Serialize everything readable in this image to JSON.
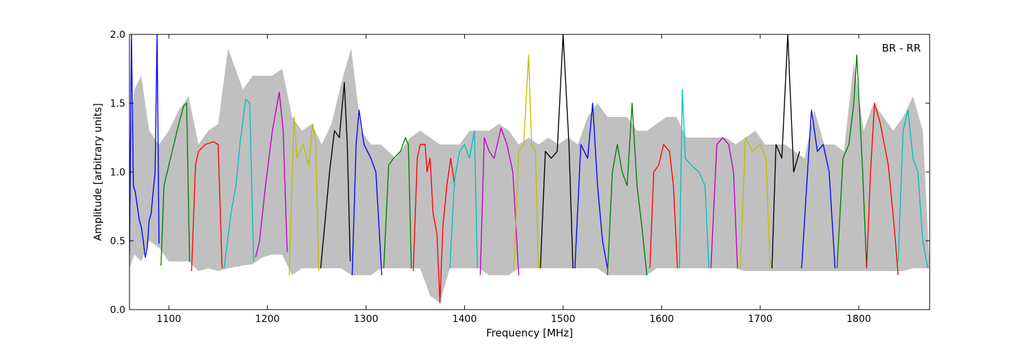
{
  "chart_data": {
    "type": "line",
    "title": "",
    "annotation": "BR - RR",
    "xlabel": "Frequency [MHz]",
    "ylabel": "Amplitude [arbitrary units]",
    "xlim": [
      1060,
      1872
    ],
    "ylim": [
      0.0,
      2.0
    ],
    "xticks": [
      1100,
      1200,
      1300,
      1400,
      1500,
      1600,
      1700,
      1800
    ],
    "yticks": [
      0.0,
      0.5,
      1.0,
      1.5,
      2.0
    ],
    "xtick_labels": [
      "1100",
      "1200",
      "1300",
      "1400",
      "1500",
      "1600",
      "1700",
      "1800"
    ],
    "ytick_labels": [
      "0.0",
      "0.5",
      "1.0",
      "1.5",
      "2.0"
    ],
    "grid": false,
    "envelope": {
      "name": "",
      "color": "#c0c0c0",
      "x": [
        1060,
        1065,
        1072,
        1080,
        1090,
        1100,
        1110,
        1120,
        1130,
        1140,
        1150,
        1160,
        1175,
        1185,
        1195,
        1205,
        1215,
        1225,
        1235,
        1245,
        1255,
        1265,
        1275,
        1285,
        1295,
        1305,
        1315,
        1330,
        1345,
        1355,
        1365,
        1375,
        1385,
        1395,
        1405,
        1415,
        1425,
        1435,
        1445,
        1455,
        1465,
        1475,
        1485,
        1495,
        1505,
        1515,
        1525,
        1535,
        1545,
        1555,
        1565,
        1575,
        1585,
        1595,
        1605,
        1615,
        1625,
        1635,
        1645,
        1655,
        1665,
        1675,
        1685,
        1695,
        1705,
        1715,
        1725,
        1735,
        1745,
        1755,
        1765,
        1775,
        1785,
        1795,
        1805,
        1815,
        1825,
        1835,
        1845,
        1855,
        1865,
        1872
      ],
      "y": [
        1.2,
        1.6,
        1.7,
        1.3,
        1.2,
        1.3,
        1.45,
        1.55,
        1.2,
        1.3,
        1.35,
        1.9,
        1.6,
        1.7,
        1.7,
        1.7,
        1.75,
        1.4,
        1.3,
        1.35,
        1.2,
        1.35,
        1.65,
        1.9,
        1.3,
        1.2,
        1.2,
        1.1,
        1.25,
        1.3,
        1.25,
        1.2,
        1.2,
        1.2,
        1.3,
        1.3,
        1.3,
        1.35,
        1.3,
        1.2,
        1.25,
        1.2,
        1.25,
        1.2,
        1.25,
        1.2,
        1.4,
        1.5,
        1.4,
        1.4,
        1.4,
        1.3,
        1.3,
        1.35,
        1.4,
        1.4,
        1.25,
        1.25,
        1.25,
        1.25,
        1.25,
        1.2,
        1.25,
        1.3,
        1.2,
        1.2,
        1.2,
        1.15,
        1.1,
        1.45,
        1.2,
        1.2,
        1.15,
        1.8,
        1.3,
        1.5,
        1.4,
        1.3,
        1.4,
        1.55,
        1.3,
        0.3
      ],
      "lower": [
        0.3,
        0.4,
        0.35,
        0.5,
        0.45,
        0.35,
        0.35,
        0.35,
        0.28,
        0.3,
        0.28,
        0.3,
        0.32,
        0.33,
        0.38,
        0.4,
        0.4,
        0.25,
        0.3,
        0.3,
        0.3,
        0.3,
        0.3,
        0.25,
        0.25,
        0.25,
        0.3,
        0.3,
        0.3,
        0.3,
        0.1,
        0.05,
        0.3,
        0.3,
        0.3,
        0.3,
        0.25,
        0.25,
        0.25,
        0.3,
        0.3,
        0.3,
        0.3,
        0.3,
        0.3,
        0.3,
        0.3,
        0.3,
        0.25,
        0.25,
        0.25,
        0.25,
        0.25,
        0.3,
        0.3,
        0.3,
        0.3,
        0.3,
        0.3,
        0.3,
        0.3,
        0.3,
        0.28,
        0.28,
        0.28,
        0.28,
        0.28,
        0.28,
        0.28,
        0.28,
        0.28,
        0.28,
        0.28,
        0.28,
        0.28,
        0.28,
        0.28,
        0.28,
        0.28,
        0.3,
        0.3,
        0.3
      ]
    },
    "series": [
      {
        "color": "#0000ff",
        "x": [
          1060,
          1062,
          1064,
          1066,
          1068,
          1070,
          1072,
          1074,
          1076,
          1078,
          1080,
          1082,
          1084,
          1086,
          1088,
          1090
        ],
        "y": [
          0.4,
          2.0,
          0.9,
          0.85,
          0.75,
          0.65,
          0.6,
          0.5,
          0.38,
          0.45,
          0.65,
          0.7,
          0.85,
          1.0,
          2.0,
          0.48
        ]
      },
      {
        "color": "#008000",
        "x": [
          1092,
          1095,
          1100,
          1105,
          1110,
          1115,
          1118,
          1121
        ],
        "y": [
          0.32,
          0.9,
          1.05,
          1.2,
          1.35,
          1.48,
          1.5,
          0.35
        ]
      },
      {
        "color": "#ff0000",
        "x": [
          1123,
          1127,
          1130,
          1137,
          1145,
          1150,
          1154
        ],
        "y": [
          0.28,
          1.05,
          1.15,
          1.2,
          1.22,
          1.2,
          0.3
        ]
      },
      {
        "color": "#00bfbf",
        "x": [
          1156,
          1163,
          1168,
          1172,
          1178,
          1182,
          1186
        ],
        "y": [
          0.3,
          0.7,
          0.9,
          1.2,
          1.53,
          1.5,
          0.35
        ]
      },
      {
        "color": "#bf00bf",
        "x": [
          1188,
          1192,
          1198,
          1205,
          1212,
          1216,
          1220
        ],
        "y": [
          0.38,
          0.5,
          0.9,
          1.3,
          1.58,
          1.3,
          0.42
        ]
      },
      {
        "color": "#bfbf00",
        "x": [
          1222,
          1227,
          1230,
          1236,
          1242,
          1246,
          1249,
          1252
        ],
        "y": [
          0.25,
          1.4,
          1.1,
          1.2,
          1.05,
          1.35,
          1.2,
          0.28
        ]
      },
      {
        "color": "#000000",
        "x": [
          1254,
          1258,
          1263,
          1268,
          1273,
          1278,
          1281,
          1284
        ],
        "y": [
          0.3,
          0.6,
          1.0,
          1.3,
          1.25,
          1.65,
          1.2,
          0.35
        ]
      },
      {
        "color": "#0000ff",
        "x": [
          1286,
          1290,
          1293,
          1298,
          1305,
          1310,
          1314,
          1316
        ],
        "y": [
          0.25,
          1.2,
          1.45,
          1.2,
          1.1,
          1.0,
          0.5,
          0.25
        ]
      },
      {
        "color": "#008000",
        "x": [
          1318,
          1323,
          1328,
          1335,
          1340,
          1343,
          1346
        ],
        "y": [
          0.3,
          1.05,
          1.1,
          1.15,
          1.25,
          1.2,
          0.3
        ]
      },
      {
        "color": "#ff0000",
        "x": [
          1348,
          1352,
          1355,
          1360,
          1362,
          1365,
          1368,
          1372,
          1375,
          1378,
          1382,
          1386,
          1390
        ],
        "y": [
          0.28,
          1.1,
          1.2,
          1.2,
          1.0,
          1.1,
          0.7,
          0.55,
          0.05,
          0.6,
          0.9,
          1.1,
          0.9
        ]
      },
      {
        "color": "#00bfbf",
        "x": [
          1385,
          1390,
          1395,
          1400,
          1405,
          1410,
          1413
        ],
        "y": [
          0.3,
          0.95,
          1.15,
          1.2,
          1.1,
          1.3,
          0.3
        ]
      },
      {
        "color": "#bf00bf",
        "x": [
          1416,
          1420,
          1425,
          1430,
          1437,
          1443,
          1449,
          1455
        ],
        "y": [
          0.25,
          1.25,
          1.15,
          1.1,
          1.32,
          1.2,
          1.0,
          0.25
        ]
      },
      {
        "color": "#bfbf00",
        "x": [
          1450,
          1455,
          1460,
          1465,
          1468,
          1472,
          1475
        ],
        "y": [
          0.3,
          1.15,
          1.2,
          1.85,
          1.2,
          1.15,
          0.3
        ]
      },
      {
        "color": "#000000",
        "x": [
          1477,
          1482,
          1488,
          1494,
          1500,
          1506,
          1510
        ],
        "y": [
          0.3,
          1.15,
          1.1,
          1.15,
          2.0,
          1.2,
          0.3
        ]
      },
      {
        "color": "#0000ff",
        "x": [
          1512,
          1518,
          1525,
          1530,
          1535,
          1540,
          1545
        ],
        "y": [
          0.3,
          1.2,
          1.1,
          1.5,
          0.9,
          0.5,
          0.3
        ]
      },
      {
        "color": "#008000",
        "x": [
          1545,
          1550,
          1555,
          1560,
          1565,
          1570,
          1575,
          1580,
          1585
        ],
        "y": [
          0.25,
          1.0,
          1.2,
          1.0,
          0.9,
          1.5,
          0.9,
          0.6,
          0.25
        ]
      },
      {
        "color": "#ff0000",
        "x": [
          1588,
          1592,
          1597,
          1602,
          1608,
          1612,
          1616
        ],
        "y": [
          0.3,
          1.0,
          1.05,
          1.2,
          1.15,
          0.9,
          0.3
        ]
      },
      {
        "color": "#00bfbf",
        "x": [
          1618,
          1621,
          1624,
          1630,
          1638,
          1644,
          1648
        ],
        "y": [
          0.3,
          1.6,
          1.1,
          1.05,
          1.0,
          0.9,
          0.3
        ]
      },
      {
        "color": "#bf00bf",
        "x": [
          1650,
          1656,
          1662,
          1668,
          1673,
          1677
        ],
        "y": [
          0.3,
          1.2,
          1.25,
          1.2,
          1.0,
          0.3
        ]
      },
      {
        "color": "#bfbf00",
        "x": [
          1680,
          1685,
          1692,
          1700,
          1706,
          1710
        ],
        "y": [
          0.3,
          1.25,
          1.15,
          1.2,
          1.1,
          0.3
        ]
      },
      {
        "color": "#000000",
        "x": [
          1712,
          1716,
          1722,
          1728,
          1734,
          1740
        ],
        "y": [
          0.3,
          1.2,
          1.1,
          2.0,
          1.0,
          1.15
        ]
      },
      {
        "color": "#0000ff",
        "x": [
          1742,
          1748,
          1752,
          1758,
          1764,
          1770,
          1776
        ],
        "y": [
          0.3,
          1.0,
          1.45,
          1.15,
          1.2,
          1.0,
          0.3
        ]
      },
      {
        "color": "#008000",
        "x": [
          1778,
          1784,
          1790,
          1795,
          1798,
          1804,
          1808
        ],
        "y": [
          0.3,
          1.1,
          1.2,
          1.5,
          1.85,
          1.0,
          0.3
        ]
      },
      {
        "color": "#ff0000",
        "x": [
          1808,
          1812,
          1816,
          1822,
          1830,
          1836,
          1840
        ],
        "y": [
          0.3,
          1.0,
          1.5,
          1.35,
          1.05,
          0.6,
          0.25
        ]
      },
      {
        "color": "#00bfbf",
        "x": [
          1840,
          1845,
          1850,
          1855,
          1860,
          1865,
          1870
        ],
        "y": [
          0.35,
          1.3,
          1.45,
          1.1,
          1.0,
          0.5,
          0.3
        ]
      }
    ]
  }
}
